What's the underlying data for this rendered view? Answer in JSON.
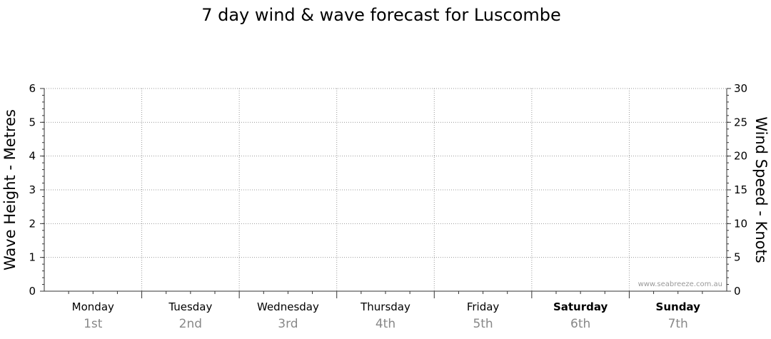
{
  "chart_data": {
    "type": "line",
    "title": "7 day wind & wave forecast for Luscombe",
    "ylabel_left": "Wave Height - Metres",
    "ylabel_right": "Wind Speed - Knots",
    "ylim_left": [
      0,
      6
    ],
    "ylim_right": [
      0,
      30
    ],
    "yticks_left": [
      "0",
      "1",
      "2",
      "3",
      "4",
      "5",
      "6"
    ],
    "yticks_right": [
      "0",
      "5",
      "10",
      "15",
      "20",
      "25",
      "30"
    ],
    "days": [
      {
        "name": "Monday",
        "date": "1st",
        "weekend": false
      },
      {
        "name": "Tuesday",
        "date": "2nd",
        "weekend": false
      },
      {
        "name": "Wednesday",
        "date": "3rd",
        "weekend": false
      },
      {
        "name": "Thursday",
        "date": "4th",
        "weekend": false
      },
      {
        "name": "Friday",
        "date": "5th",
        "weekend": false
      },
      {
        "name": "Saturday",
        "date": "6th",
        "weekend": true
      },
      {
        "name": "Sunday",
        "date": "7th",
        "weekend": true
      }
    ],
    "series": [],
    "grid": true,
    "credit": "www.seabreeze.com.au"
  },
  "colors": {
    "grid": "#999999",
    "axis": "#333333",
    "date_text": "#888888",
    "credit_text": "#999999"
  }
}
